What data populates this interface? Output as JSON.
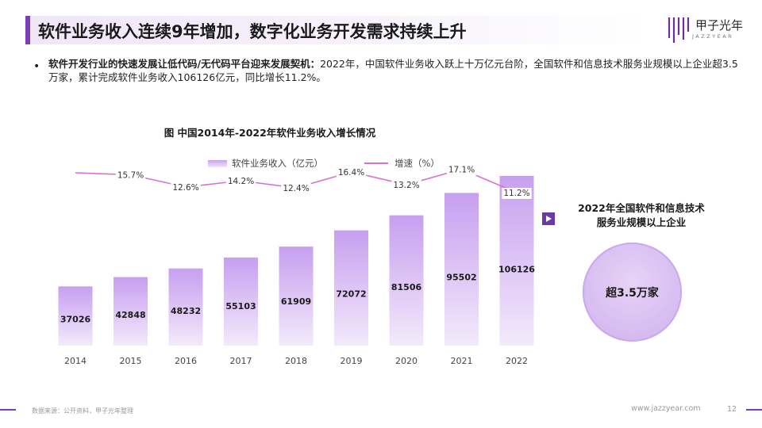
{
  "page": {
    "title": "软件业务收入连续9年增加，数字化业务开发需求持续上升",
    "logo_cn": "甲子光年",
    "logo_en": "JAZZYEAR",
    "bullet_bold": "软件开发行业的快速发展让低代码/无代码平台迎来发展契机：",
    "bullet_text": "2022年，中国软件业务收入跃上十万亿元台阶，全国软件和信息技术服务业规模以上企业超3.5万家，累计完成软件业务收入106126亿元，同比增长11.2%。",
    "source": "数据来源：公开资料，甲子光年整理",
    "website": "www.jazzyear.com",
    "page_number": "12"
  },
  "aside": {
    "title_line1": "2022年全国软件和信息技术",
    "title_line2": "服务业规模以上企业",
    "circle_text": "超3.5万家"
  },
  "colors": {
    "accent": "#7a3fb8",
    "bar_top": "#c79ff0",
    "bar_bottom": "#f3eafb",
    "line": "#d870d4"
  },
  "chart_data": {
    "type": "bar",
    "title": "图 中国2014年-2022年软件业务收入增长情况",
    "categories": [
      "2014",
      "2015",
      "2016",
      "2017",
      "2018",
      "2019",
      "2020",
      "2021",
      "2022"
    ],
    "series": [
      {
        "name": "软件业务收入（亿元）",
        "type": "bar",
        "values": [
          37026,
          42848,
          48232,
          55103,
          61909,
          72072,
          81506,
          95502,
          106126
        ]
      },
      {
        "name": "增速（%）",
        "type": "line",
        "values": [
          null,
          15.7,
          12.6,
          14.2,
          12.4,
          16.4,
          13.2,
          17.1,
          11.2
        ],
        "labels": [
          "",
          "15.7%",
          "12.6%",
          "14.2%",
          "12.4%",
          "16.4%",
          "13.2%",
          "17.1%",
          "11.2%"
        ]
      }
    ],
    "ylim": [
      0,
      106126
    ]
  }
}
